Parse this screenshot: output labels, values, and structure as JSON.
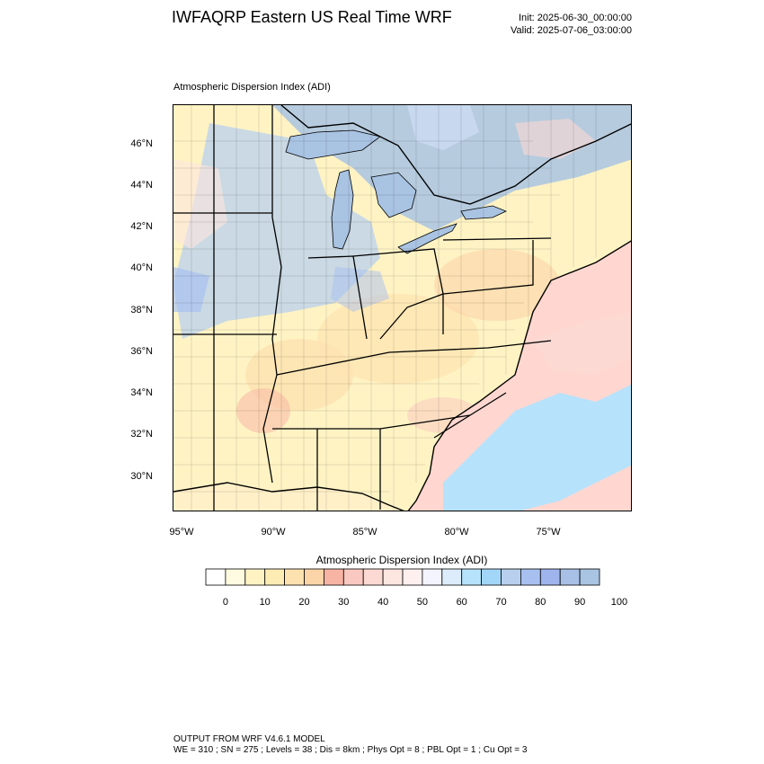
{
  "header": {
    "title": "IWFAQRP Eastern US Real Time WRF",
    "init": "Init: 2025-06-30_00:00:00",
    "valid": "Valid: 2025-07-06_03:00:00"
  },
  "map": {
    "subtitle": "Atmospheric Dispersion Index   (ADI)",
    "lat_labels": [
      "46°N",
      "44°N",
      "42°N",
      "40°N",
      "38°N",
      "36°N",
      "34°N",
      "32°N",
      "30°N"
    ],
    "lon_labels": [
      "95°W",
      "90°W",
      "85°W",
      "80°W",
      "75°W"
    ],
    "lat_values": [
      46,
      44,
      42,
      40,
      38,
      36,
      34,
      32,
      30
    ],
    "lon_values": [
      -95,
      -90,
      -85,
      -80,
      -75
    ],
    "extent": {
      "lon_min": -95.5,
      "lon_max": -70.5,
      "lat_min": 28.5,
      "lat_max": 47.8
    },
    "colors": {
      "land_low": "#fff3c4",
      "land_mid": "#fde2b0",
      "cool_region": "#b8d0ee",
      "lake_water": "#a9c3e3",
      "ocean": "#ffd7d0",
      "ocean_blue": "#b7e2fb",
      "border": "#000000"
    }
  },
  "colorbar": {
    "title": "Atmospheric Dispersion Index  (ADI)",
    "labels": [
      "0",
      "10",
      "20",
      "30",
      "40",
      "50",
      "60",
      "70",
      "80",
      "90",
      "100"
    ],
    "colors": [
      "#ffffff",
      "#fffbe0",
      "#fff3c4",
      "#fdecb4",
      "#fde2b0",
      "#fbd4a8",
      "#f7b4a4",
      "#f9c8c0",
      "#fcd9d2",
      "#fde6e0",
      "#fdf0ee",
      "#f4f4ff",
      "#dcecfb",
      "#b7e2fb",
      "#a2d6f8",
      "#b8d0ee",
      "#a8c0f0",
      "#9fb4ec",
      "#a8bfe6",
      "#a9c3e3"
    ]
  },
  "footer": {
    "line1": "OUTPUT FROM WRF V4.6.1 MODEL",
    "line2": "WE = 310 ; SN = 275 ; Levels = 38 ; Dis = 8km ; Phys Opt = 8 ; PBL Opt = 1 ; Cu Opt = 3"
  }
}
